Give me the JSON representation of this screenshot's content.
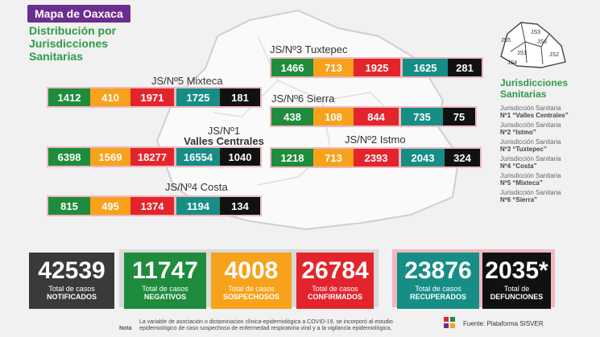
{
  "header": {
    "title": "Mapa de Oaxaca",
    "subtitle_lines": [
      "Distribución por",
      "Jurisdicciones",
      "Sanitarias"
    ]
  },
  "colors": {
    "negativos": "#1e8c3c",
    "sospechosos": "#f7a21b",
    "confirmados": "#e4242c",
    "recuperados": "#168e85",
    "defunciones": "#111111",
    "title_bg": "#6b2d8f",
    "accent_green": "#2e9a48"
  },
  "jurisdictions": [
    {
      "label": "JS/Nº3 Tuxtepec",
      "negativos": "1466",
      "sospechosos": "713",
      "confirmados": "1925",
      "recuperados": "1625",
      "defunciones": "281"
    },
    {
      "label": "JS/Nº5 Mixteca",
      "negativos": "1412",
      "sospechosos": "410",
      "confirmados": "1971",
      "recuperados": "1725",
      "defunciones": "181"
    },
    {
      "label": "JS/Nº6 Sierra",
      "negativos": "438",
      "sospechosos": "108",
      "confirmados": "844",
      "recuperados": "735",
      "defunciones": "75"
    },
    {
      "label_line1": "JS/Nº1",
      "label_line2": "Valles Centrales",
      "negativos": "6398",
      "sospechosos": "1569",
      "confirmados": "18277",
      "recuperados": "16554",
      "defunciones": "1040"
    },
    {
      "label": "JS/Nº2 Istmo",
      "negativos": "1218",
      "sospechosos": "713",
      "confirmados": "2393",
      "recuperados": "2043",
      "defunciones": "324"
    },
    {
      "label": "JS/Nº4 Costa",
      "negativos": "815",
      "sospechosos": "495",
      "confirmados": "1374",
      "recuperados": "1194",
      "defunciones": "134"
    }
  ],
  "minimap_labels": [
    "JS5",
    "JS3",
    "JS6",
    "JS1",
    "JS2",
    "JS4"
  ],
  "legend": {
    "title_lines": [
      "Jurisdicciones",
      "Sanitarias"
    ],
    "items": [
      {
        "line1": "Jurisdicción Sanitaria",
        "line2": "Nº1 “Valles Centrales”"
      },
      {
        "line1": "Jurisdicción Sanitaria",
        "line2": "Nº2 “Istmo”"
      },
      {
        "line1": "Jurisdicción Sanitaria",
        "line2": "Nº3 “Tuxtepec”"
      },
      {
        "line1": "Jurisdicción Sanitaria",
        "line2": "Nº4 “Costa”"
      },
      {
        "line1": "Jurisdicción Sanitaria",
        "line2": "Nº5 “Mixteca”"
      },
      {
        "line1": "Jurisdicción Sanitaria",
        "line2": "Nº6 “Sierra”"
      }
    ]
  },
  "totals": [
    {
      "value": "42539",
      "label1": "Total de casos",
      "label2": "NOTIFICADOS",
      "color": "#3a3a3a"
    },
    {
      "value": "11747",
      "label1": "Total de casos",
      "label2": "NEGATIVOS",
      "color": "#1e8c3c"
    },
    {
      "value": "4008",
      "label1": "Total de casos",
      "label2": "SOSPECHOSOS",
      "color": "#f7a21b"
    },
    {
      "value": "26784",
      "label1": "Total de casos",
      "label2": "CONFIRMADOS",
      "color": "#e4242c"
    },
    {
      "value": "23876",
      "label1": "Total de casos",
      "label2": "RECUPERADOS",
      "color": "#168e85"
    },
    {
      "value": "2035*",
      "label1": "Total de",
      "label2": "DEFUNCIONES",
      "color": "#111111"
    }
  ],
  "footer": {
    "note_label": "Nota",
    "note_text": "La variable de asociación o dictaminacion clínica-epidemiológica a COVID-19, se incorporó al estudio epidemiológico de caso sospechoso de enfermedad respiratoria viral y a la vigilancia epidemiológica,",
    "source": "Fuente: Plataforma SISVER"
  }
}
